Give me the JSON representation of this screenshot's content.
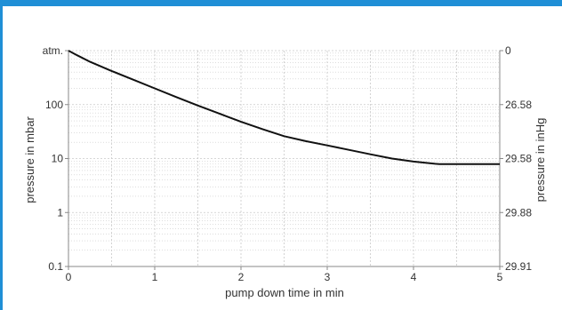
{
  "chart_data": {
    "type": "line",
    "title": "",
    "xlabel": "pump down time in min",
    "ylabel_left": "pressure in mbar",
    "ylabel_right": "pressure in inHg",
    "x_ticks": [
      "0",
      "1",
      "2",
      "3",
      "4",
      "5"
    ],
    "y_scale": "log",
    "y_left_ticks": [
      {
        "value": 1000,
        "label": "atm."
      },
      {
        "value": 100,
        "label": "100"
      },
      {
        "value": 10,
        "label": "10"
      },
      {
        "value": 1,
        "label": "1"
      },
      {
        "value": 0.1,
        "label": "0.1"
      }
    ],
    "y_right_ticks": [
      {
        "value": 1000,
        "label": "0"
      },
      {
        "value": 100,
        "label": "26.58"
      },
      {
        "value": 10,
        "label": "29.58"
      },
      {
        "value": 1,
        "label": "29.88"
      },
      {
        "value": 0.1,
        "label": "29.91"
      }
    ],
    "xlim": [
      0,
      5
    ],
    "ylim": [
      0.1,
      1000
    ],
    "grid": true,
    "series": [
      {
        "color": "#111111",
        "points": [
          [
            0,
            1000
          ],
          [
            0.1,
            820
          ],
          [
            0.25,
            620
          ],
          [
            0.5,
            420
          ],
          [
            0.75,
            290
          ],
          [
            1.0,
            200
          ],
          [
            1.25,
            138
          ],
          [
            1.5,
            96
          ],
          [
            1.75,
            68
          ],
          [
            2.0,
            48
          ],
          [
            2.25,
            35
          ],
          [
            2.5,
            26
          ],
          [
            2.75,
            21
          ],
          [
            3.0,
            17.5
          ],
          [
            3.25,
            14.5
          ],
          [
            3.5,
            12
          ],
          [
            3.75,
            10
          ],
          [
            4.0,
            8.8
          ],
          [
            4.25,
            8.0
          ],
          [
            4.3,
            7.9
          ],
          [
            4.5,
            7.9
          ],
          [
            5.0,
            7.9
          ]
        ]
      }
    ]
  },
  "colors": {
    "accent_bar": "#1f8fd6",
    "grid": "#c9c9c9",
    "axis": "#888888",
    "line": "#111111"
  }
}
